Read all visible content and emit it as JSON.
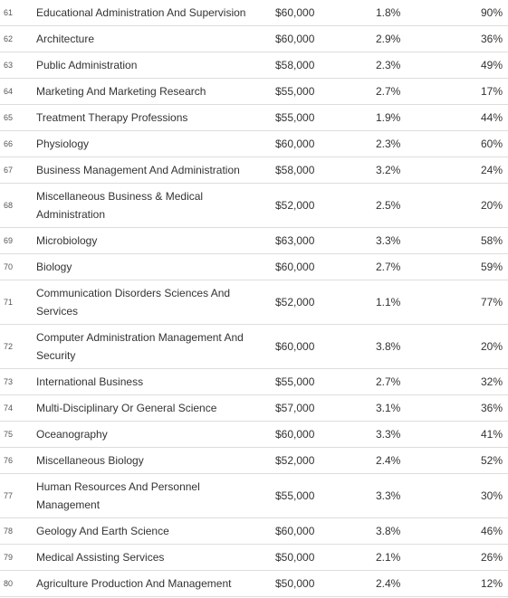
{
  "rows": [
    {
      "rank": "61",
      "major": "Educational Administration And Supervision",
      "salary": "$60,000",
      "unemployment": "1.8%",
      "percent": "90%"
    },
    {
      "rank": "62",
      "major": "Architecture",
      "salary": "$60,000",
      "unemployment": "2.9%",
      "percent": "36%"
    },
    {
      "rank": "63",
      "major": "Public Administration",
      "salary": "$58,000",
      "unemployment": "2.3%",
      "percent": "49%"
    },
    {
      "rank": "64",
      "major": "Marketing And Marketing Research",
      "salary": "$55,000",
      "unemployment": "2.7%",
      "percent": "17%"
    },
    {
      "rank": "65",
      "major": "Treatment Therapy Professions",
      "salary": "$55,000",
      "unemployment": "1.9%",
      "percent": "44%"
    },
    {
      "rank": "66",
      "major": "Physiology",
      "salary": "$60,000",
      "unemployment": "2.3%",
      "percent": "60%"
    },
    {
      "rank": "67",
      "major": "Business Management And Administration",
      "salary": "$58,000",
      "unemployment": "3.2%",
      "percent": "24%"
    },
    {
      "rank": "68",
      "major": "Miscellaneous Business & Medical Administration",
      "salary": "$52,000",
      "unemployment": "2.5%",
      "percent": "20%"
    },
    {
      "rank": "69",
      "major": "Microbiology",
      "salary": "$63,000",
      "unemployment": "3.3%",
      "percent": "58%"
    },
    {
      "rank": "70",
      "major": "Biology",
      "salary": "$60,000",
      "unemployment": "2.7%",
      "percent": "59%"
    },
    {
      "rank": "71",
      "major": "Communication Disorders Sciences And Services",
      "salary": "$52,000",
      "unemployment": "1.1%",
      "percent": "77%"
    },
    {
      "rank": "72",
      "major": "Computer Administration Management And Security",
      "salary": "$60,000",
      "unemployment": "3.8%",
      "percent": "20%"
    },
    {
      "rank": "73",
      "major": "International Business",
      "salary": "$55,000",
      "unemployment": "2.7%",
      "percent": "32%"
    },
    {
      "rank": "74",
      "major": "Multi-Disciplinary Or General Science",
      "salary": "$57,000",
      "unemployment": "3.1%",
      "percent": "36%"
    },
    {
      "rank": "75",
      "major": "Oceanography",
      "salary": "$60,000",
      "unemployment": "3.3%",
      "percent": "41%"
    },
    {
      "rank": "76",
      "major": "Miscellaneous Biology",
      "salary": "$52,000",
      "unemployment": "2.4%",
      "percent": "52%"
    },
    {
      "rank": "77",
      "major": "Human Resources And Personnel Management",
      "salary": "$55,000",
      "unemployment": "3.3%",
      "percent": "30%"
    },
    {
      "rank": "78",
      "major": "Geology And Earth Science",
      "salary": "$60,000",
      "unemployment": "3.8%",
      "percent": "46%"
    },
    {
      "rank": "79",
      "major": "Medical Assisting Services",
      "salary": "$50,000",
      "unemployment": "2.1%",
      "percent": "26%"
    },
    {
      "rank": "80",
      "major": "Agriculture Production And Management",
      "salary": "$50,000",
      "unemployment": "2.4%",
      "percent": "12%"
    }
  ]
}
